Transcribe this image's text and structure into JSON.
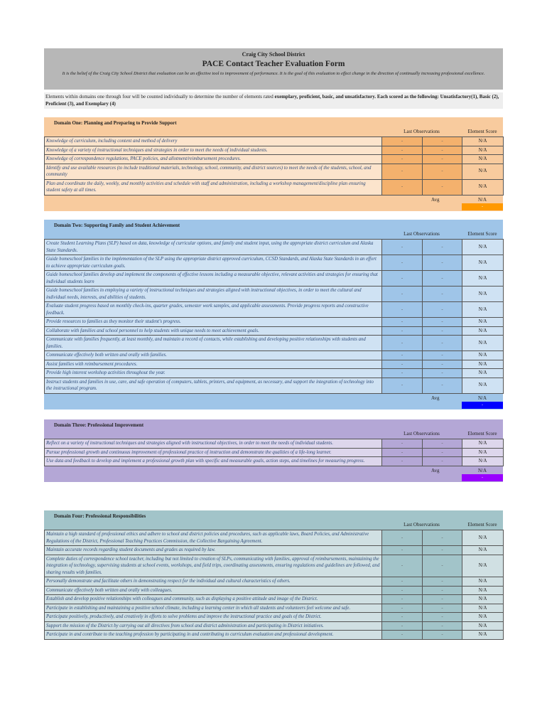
{
  "header": {
    "district": "Craig City School District",
    "title": "PACE Contact Teacher Evaluation Form",
    "belief": "It is the belief of the Craig City School District that evaluation can be an effective tool to improvement of performance. It is the goal of this evaluation to effect change in the direction of continually increasing professional excellence."
  },
  "instructions": {
    "lead": "Elements within domains one through four will be counted individually to determine the number of elements rated ",
    "bold": "exemplary, proficient, basic, and unsatisfactory.   Each scored as the following:  Unsatisfactory(1), Basic (2), Proficient (3), and Exemplary (4)"
  },
  "labels": {
    "last_observations": "Last Observations",
    "element_score": "Element Score",
    "avg": "Avg"
  },
  "domains": [
    {
      "title": "Domain One: Planning and Preparing to Provide Support",
      "colors": {
        "bg": "#f8cb9e",
        "desc": "#fce4cc",
        "obs": "#f4b16d",
        "score": "#f8cb9e",
        "swatch": "#ff9900"
      },
      "avg": "N/A",
      "avg_swatch": "-",
      "rows": [
        {
          "text": "Knowledge of curriculum, including content and method of delivery",
          "obs1": "-",
          "obs2": "-",
          "score": "N/A"
        },
        {
          "text": "Knowledge of a variety of instructional techniques and strategies in order to meet the needs of individual students.",
          "obs1": "-",
          "obs2": "-",
          "score": "N/A"
        },
        {
          "text": "Knowledge of correspondence regulations, PACE policies, and allotment/reimbursement procedures.",
          "obs1": "-",
          "obs2": "-",
          "score": "N/A"
        },
        {
          "text": "Identify and use available resources (to include traditional materials, technology, school, community, and district sources) to meet the needs of the students, school, and community",
          "obs1": "-",
          "obs2": "-",
          "score": "N/A"
        },
        {
          "text": "Plan and coordinate the daily, weekly, and monthly activities and schedule with staff and administration, including a workshop management/discipline plan ensuring student safety at all times.",
          "obs1": "-",
          "obs2": "-",
          "score": "N/A"
        }
      ]
    },
    {
      "title": "Domain Two: Supporting Family and Student Achievement",
      "colors": {
        "bg": "#9fc5e8",
        "desc": "#cfe2f3",
        "obs": "#9fc5e8",
        "score": "#cfe2f3",
        "swatch": "#0000ff"
      },
      "avg": "N/A",
      "avg_swatch": "-",
      "rows": [
        {
          "text": "Create Student Learning Plans (SLP) based on data, knowledge of curricular options, and family and student input, using the appropriate district curriculum and Alaska State Standards.",
          "obs1": "-",
          "obs2": "-",
          "score": "N/A"
        },
        {
          "text": "Guide homeschool families in the implementation of the SLP using the appropriate district approved curriculum, CCSD Standards, and Alaska State Standards in an effort to achieve appropriate curriculum goals.",
          "obs1": "-",
          "obs2": "-",
          "score": "N/A"
        },
        {
          "text": "Guide homeschool families develop and implement the components of effective lessons including a measurable objective, relevant activities and strategies for ensuring that individual students learn",
          "obs1": "-",
          "obs2": "-",
          "score": "N/A"
        },
        {
          "text": "Guide homeschool families in employing a variety of instructional techniques and strategies aligned with instructional objectives, in order to meet the cultural and individual needs, interests, and abilities of students.",
          "obs1": "-",
          "obs2": "-",
          "score": "N/A"
        },
        {
          "text": "Evaluate student progress based on monthly check-ins, quarter grades, semester work samples, and applicable assessments. Provide progress reports and constructive feedback.",
          "obs1": "-",
          "obs2": "-",
          "score": "N/A"
        },
        {
          "text": "Provide resources to families as they monitor their student's progress.",
          "obs1": "-",
          "obs2": "-",
          "score": "N/A"
        },
        {
          "text": "Collaborate with families and school personnel to help students with unique needs to meet achievement goals.",
          "obs1": "-",
          "obs2": "-",
          "score": "N/A"
        },
        {
          "text": "Communicate with families frequently, at least monthly, and maintain a record of contacts, while establishing and developing positive relationships with students and families.",
          "obs1": "-",
          "obs2": "-",
          "score": "N/A"
        },
        {
          "text": "Communicate effectively both written and orally with families.",
          "obs1": "-",
          "obs2": "-",
          "score": "N/A"
        },
        {
          "text": "Assist families with reimbursement procedures.",
          "obs1": "-",
          "obs2": "-",
          "score": "N/A"
        },
        {
          "text": "Provide high interest workshop activities throughout the year.",
          "obs1": "-",
          "obs2": "-",
          "score": "N/A"
        },
        {
          "text": "Instruct students and families in use, care, and safe operation of computers, tablets, printers, and equipment, as necessary, and support the integration of technology into the instructional program.",
          "obs1": "-",
          "obs2": "-",
          "score": "N/A"
        }
      ]
    },
    {
      "title": "Domain Three: Professional Improvement",
      "colors": {
        "bg": "#b4a7d6",
        "desc": "#ddd6ec",
        "obs": "#b4a7d6",
        "score": "#ddd6ec",
        "swatch": "#9900ff"
      },
      "avg": "N/A",
      "avg_swatch": "-",
      "rows": [
        {
          "text": "Reflect on a variety of instructional techniques and strategies aligned with instructional objectives, in order to meet the needs of individual students.",
          "obs1": "-",
          "obs2": "-",
          "score": "N/A"
        },
        {
          "text": "Pursue professional growth and continuous improvement of professional practice of instruction and demonstrate the qualities of a life-long learner.",
          "obs1": "-",
          "obs2": "-",
          "score": "N/A"
        },
        {
          "text": "Use data and feedback to develop and implement a professional growth plan with specific and measurable goals, action steps, and timelines for measuring progress.",
          "obs1": "-",
          "obs2": "-",
          "score": "N/A"
        }
      ]
    },
    {
      "title": "Domain Four: Professional Responsibilities",
      "colors": {
        "bg": "#a2c4c9",
        "desc": "#d0e0e3",
        "obs": "#a2c4c9",
        "score": "#d0e0e3"
      },
      "rows": [
        {
          "text": "Maintain a high standard of professional ethics and adhere to school and district policies and procedures, such as applicable laws, Board Policies, and Administrative Regulations of the District, Professional Teaching Practices Commission, the Collective Bargaining Agreement.",
          "obs1": "-",
          "obs2": "-",
          "score": "N/A"
        },
        {
          "text": "Maintain accurate records regarding student documents and grades as required by law.",
          "obs1": "-",
          "obs2": "-",
          "score": "N/A"
        },
        {
          "text": "Complete duties of correspondence school teacher, including but not limited to creation of SLPs, communicating with families, approval of reimbursements, maintaining the integration of technology, supervising students at school events, workshops, and field trips, coordinating assessments, ensuring regulations and guidelines are followed, and sharing results with families.",
          "obs1": "-",
          "obs2": "-",
          "score": "N/A"
        },
        {
          "text": "Personally demonstrate and facilitate others in demonstrating respect for the individual and cultural characteristics of others.",
          "obs1": "-",
          "obs2": "-",
          "score": "N/A"
        },
        {
          "text": "Communicate effectively both written and orally with colleagues.",
          "obs1": "-",
          "obs2": "-",
          "score": "N/A"
        },
        {
          "text": "Establish and develop positive relationships with colleagues and community, such as displaying a positive attitude and image of the District.",
          "obs1": "-",
          "obs2": "-",
          "score": "N/A"
        },
        {
          "text": "Participate in establishing and maintaining a positive school climate, including a learning center in which all students and volunteers feel welcome and safe.",
          "obs1": "-",
          "obs2": "-",
          "score": "N/A"
        },
        {
          "text": "Participate positively, productively, and creatively in efforts to solve problems and improve the instructional practice and goals of the District.",
          "obs1": "-",
          "obs2": "-",
          "score": "N/A"
        },
        {
          "text": "Support the mission of the District by carrying out all directives from school and district administration and participating in District initiatives.",
          "obs1": "-",
          "obs2": "-",
          "score": "N/A"
        },
        {
          "text": "Participate in and contribute to the teaching profession by participating in and contributing to curriculum evaluation and professional development.",
          "obs1": "-",
          "obs2": "-",
          "score": "N/A"
        }
      ]
    }
  ]
}
